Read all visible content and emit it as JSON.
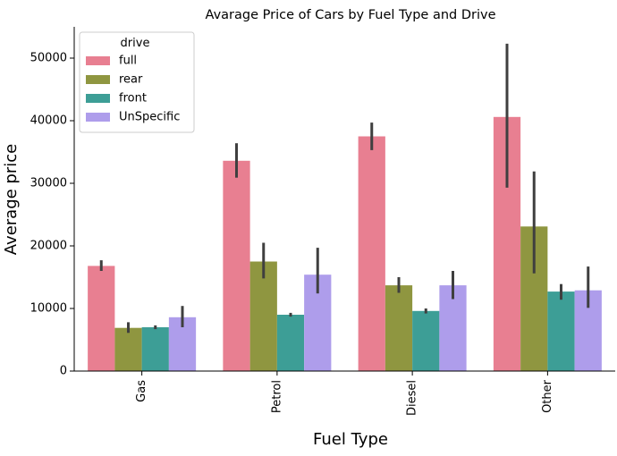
{
  "chart_data": {
    "type": "bar",
    "title": "Avarage Price of Cars by Fuel Type and Drive",
    "xlabel": "Fuel Type",
    "ylabel": "Average price",
    "categories": [
      "Gas",
      "Petrol",
      "Diesel",
      "Other"
    ],
    "ylim": [
      0,
      55000
    ],
    "yticks": [
      0,
      10000,
      20000,
      30000,
      40000,
      50000
    ],
    "ytick_labels": [
      "0",
      "10000",
      "20000",
      "30000",
      "40000",
      "50000"
    ],
    "legend_title": "drive",
    "legend_position": "top-left",
    "grid": false,
    "series": [
      {
        "name": "full",
        "color": "#e87f91",
        "values": [
          16800,
          33600,
          37500,
          40600
        ],
        "error_low": [
          16000,
          30900,
          35300,
          29300
        ],
        "error_high": [
          17700,
          36400,
          39700,
          52300
        ]
      },
      {
        "name": "rear",
        "color": "#8f9640",
        "values": [
          6900,
          17500,
          13700,
          23100
        ],
        "error_low": [
          6100,
          14800,
          12500,
          15600
        ],
        "error_high": [
          7800,
          20500,
          15000,
          31900
        ]
      },
      {
        "name": "front",
        "color": "#3d9e96",
        "values": [
          7000,
          9000,
          9600,
          12700
        ],
        "error_low": [
          6700,
          8700,
          9200,
          11400
        ],
        "error_high": [
          7300,
          9300,
          10000,
          13900
        ]
      },
      {
        "name": "UnSpecific",
        "color": "#ae9deb",
        "values": [
          8600,
          15400,
          13700,
          12900
        ],
        "error_low": [
          7000,
          12400,
          11500,
          10100
        ],
        "error_high": [
          10400,
          19700,
          16000,
          16700
        ]
      }
    ]
  }
}
